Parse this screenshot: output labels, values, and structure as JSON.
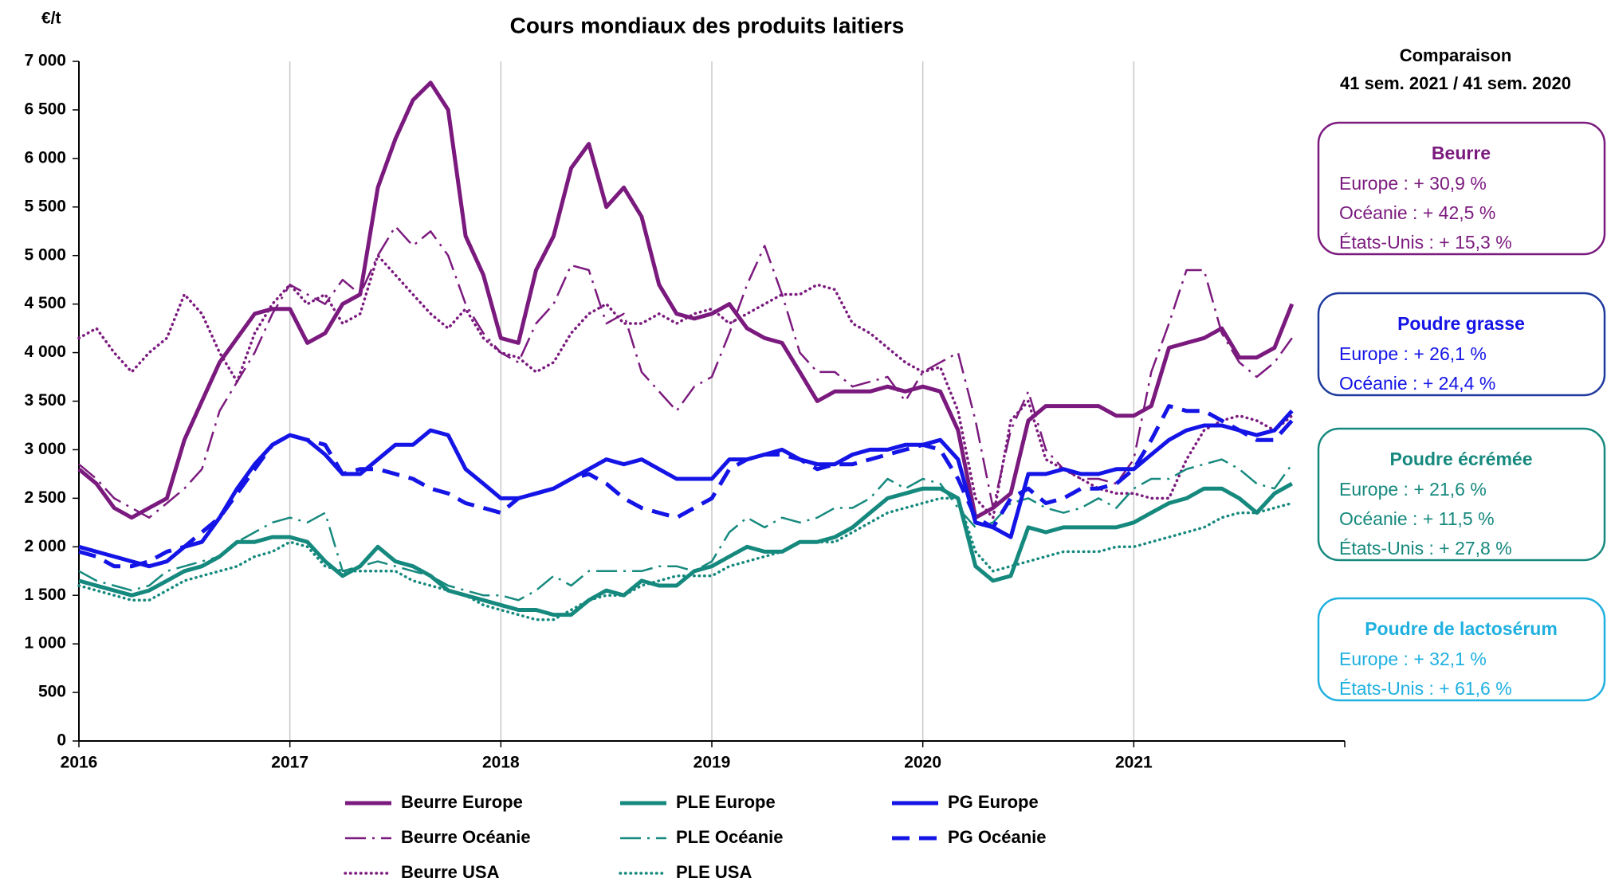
{
  "chart_data": {
    "type": "line",
    "title": "Cours mondiaux des produits laitiers",
    "y_label": "€/t",
    "x": [
      2016,
      2016.083,
      2016.167,
      2016.25,
      2016.333,
      2016.417,
      2016.5,
      2016.583,
      2016.667,
      2016.75,
      2016.833,
      2016.917,
      2017,
      2017.083,
      2017.167,
      2017.25,
      2017.333,
      2017.417,
      2017.5,
      2017.583,
      2017.667,
      2017.75,
      2017.833,
      2017.917,
      2018,
      2018.083,
      2018.167,
      2018.25,
      2018.333,
      2018.417,
      2018.5,
      2018.583,
      2018.667,
      2018.75,
      2018.833,
      2018.917,
      2019,
      2019.083,
      2019.167,
      2019.25,
      2019.333,
      2019.417,
      2019.5,
      2019.583,
      2019.667,
      2019.75,
      2019.833,
      2019.917,
      2020,
      2020.083,
      2020.167,
      2020.25,
      2020.333,
      2020.417,
      2020.5,
      2020.583,
      2020.667,
      2020.75,
      2020.833,
      2020.917,
      2021,
      2021.083,
      2021.167,
      2021.25,
      2021.333,
      2021.417,
      2021.5,
      2021.583,
      2021.667,
      2021.75
    ],
    "xlim": [
      2016,
      2022
    ],
    "xticks": [
      2016,
      2017,
      2018,
      2019,
      2020,
      2021
    ],
    "ylim": [
      0,
      7000
    ],
    "yticks": [
      0,
      500,
      {
        "value": 1000,
        "label": "1 000"
      },
      {
        "value": 1500,
        "label": "1 500"
      },
      {
        "value": 2000,
        "label": "2 000"
      },
      {
        "value": 2500,
        "label": "2 500"
      },
      {
        "value": 3000,
        "label": "3 000"
      },
      {
        "value": 3500,
        "label": "3 500"
      },
      {
        "value": 4000,
        "label": "4 000"
      },
      {
        "value": 4500,
        "label": "4 500"
      },
      {
        "value": 5000,
        "label": "5 000"
      },
      {
        "value": 5500,
        "label": "5 500"
      },
      {
        "value": 6000,
        "label": "6 000"
      },
      {
        "value": 6500,
        "label": "6 500"
      },
      {
        "value": 7000,
        "label": "7 000"
      }
    ],
    "grid": "x",
    "series": [
      {
        "name": "Beurre Europe",
        "color": "#7b1a7e",
        "style": "solid",
        "values": [
          2800,
          2650,
          2400,
          2300,
          2400,
          2500,
          3100,
          3500,
          3900,
          4150,
          4400,
          4450,
          4450,
          4100,
          4200,
          4500,
          4600,
          5700,
          6200,
          6600,
          6780,
          6500,
          5200,
          4800,
          4150,
          4100,
          4850,
          5200,
          5900,
          6150,
          5500,
          5700,
          5400,
          4700,
          4400,
          4350,
          4400,
          4500,
          4250,
          4150,
          4100,
          3800,
          3500,
          3600,
          3600,
          3600,
          3650,
          3600,
          3650,
          3600,
          3200,
          2300,
          2400,
          2550,
          3300,
          3450,
          3450,
          3450,
          3450,
          3350,
          3350,
          3450,
          4050,
          4100,
          4150,
          4250,
          3950,
          3950,
          4050,
          4500
        ]
      },
      {
        "name": "Beurre Océanie",
        "color": "#7b1a7e",
        "style": "dashdot",
        "values": [
          2850,
          2700,
          2500,
          2400,
          2300,
          2450,
          2600,
          2800,
          3400,
          3700,
          4000,
          4400,
          4700,
          4600,
          4500,
          4750,
          4600,
          5000,
          5300,
          5100,
          5250,
          5000,
          4500,
          4200,
          4000,
          3900,
          4300,
          4500,
          4900,
          4850,
          4300,
          4400,
          3800,
          3600,
          3400,
          3650,
          3750,
          4200,
          4700,
          5100,
          4600,
          4000,
          3800,
          3800,
          3650,
          3700,
          3750,
          3500,
          3800,
          3900,
          4000,
          3300,
          2400,
          3200,
          3600,
          3000,
          2800,
          2700,
          2700,
          2650,
          2900,
          3800,
          4300,
          4850,
          4850,
          4200,
          3900,
          3750,
          3900,
          4150
        ]
      },
      {
        "name": "Beurre USA",
        "color": "#7b1a7e",
        "style": "dotted",
        "values": [
          4150,
          4250,
          4000,
          3800,
          4000,
          4150,
          4600,
          4400,
          4000,
          3700,
          4200,
          4500,
          4700,
          4500,
          4600,
          4300,
          4400,
          5000,
          4800,
          4600,
          4400,
          4250,
          4450,
          4150,
          4000,
          3950,
          3800,
          3900,
          4200,
          4400,
          4500,
          4300,
          4300,
          4400,
          4300,
          4400,
          4450,
          4300,
          4400,
          4500,
          4600,
          4600,
          4700,
          4650,
          4300,
          4200,
          4050,
          3900,
          3800,
          3850,
          3400,
          2500,
          2300,
          3300,
          3500,
          2900,
          2800,
          2700,
          2600,
          2550,
          2550,
          2500,
          2500,
          2900,
          3200,
          3300,
          3350,
          3300,
          3200,
          3350
        ]
      },
      {
        "name": "PLE Europe",
        "color": "#16897e",
        "style": "solid",
        "values": [
          1650,
          1600,
          1550,
          1500,
          1550,
          1650,
          1750,
          1800,
          1900,
          2050,
          2050,
          2100,
          2100,
          2050,
          1850,
          1700,
          1800,
          2000,
          1850,
          1800,
          1700,
          1550,
          1500,
          1450,
          1400,
          1350,
          1350,
          1300,
          1300,
          1450,
          1550,
          1500,
          1650,
          1600,
          1600,
          1750,
          1800,
          1900,
          2000,
          1950,
          1950,
          2050,
          2050,
          2100,
          2200,
          2350,
          2500,
          2550,
          2600,
          2600,
          2500,
          1800,
          1650,
          1700,
          2200,
          2150,
          2200,
          2200,
          2200,
          2200,
          2250,
          2350,
          2450,
          2500,
          2600,
          2600,
          2500,
          2350,
          2550,
          2650
        ]
      },
      {
        "name": "PLE Océanie",
        "color": "#16897e",
        "style": "dashdot",
        "values": [
          1750,
          1650,
          1600,
          1550,
          1600,
          1750,
          1800,
          1850,
          1900,
          2050,
          2150,
          2250,
          2300,
          2250,
          2350,
          1750,
          1800,
          1850,
          1800,
          1750,
          1700,
          1600,
          1550,
          1500,
          1500,
          1450,
          1550,
          1700,
          1600,
          1750,
          1750,
          1750,
          1750,
          1800,
          1800,
          1750,
          1850,
          2150,
          2300,
          2200,
          2300,
          2250,
          2300,
          2400,
          2400,
          2500,
          2700,
          2600,
          2700,
          2650,
          2400,
          2200,
          2250,
          2450,
          2500,
          2400,
          2350,
          2400,
          2500,
          2400,
          2600,
          2700,
          2700,
          2800,
          2850,
          2900,
          2800,
          2650,
          2600,
          2850
        ]
      },
      {
        "name": "PLE USA",
        "color": "#16897e",
        "style": "dotted",
        "values": [
          1600,
          1550,
          1500,
          1450,
          1450,
          1550,
          1650,
          1700,
          1750,
          1800,
          1900,
          1950,
          2050,
          2000,
          1800,
          1750,
          1750,
          1750,
          1750,
          1650,
          1600,
          1550,
          1500,
          1400,
          1350,
          1300,
          1250,
          1250,
          1350,
          1450,
          1500,
          1500,
          1600,
          1650,
          1700,
          1700,
          1700,
          1800,
          1850,
          1900,
          1950,
          2050,
          2050,
          2050,
          2150,
          2250,
          2350,
          2400,
          2450,
          2500,
          2500,
          1950,
          1750,
          1800,
          1850,
          1900,
          1950,
          1950,
          1950,
          2000,
          2000,
          2050,
          2100,
          2150,
          2200,
          2300,
          2350,
          2350,
          2400,
          2450
        ]
      },
      {
        "name": "PG Europe",
        "color": "#1414e6",
        "style": "solid",
        "values": [
          2000,
          1950,
          1900,
          1850,
          1800,
          1850,
          2000,
          2050,
          2300,
          2600,
          2850,
          3050,
          3150,
          3100,
          2950,
          2750,
          2750,
          2900,
          3050,
          3050,
          3200,
          3150,
          2800,
          2650,
          2500,
          2500,
          2550,
          2600,
          2700,
          2800,
          2900,
          2850,
          2900,
          2800,
          2700,
          2700,
          2700,
          2900,
          2900,
          2950,
          3000,
          2900,
          2850,
          2850,
          2950,
          3000,
          3000,
          3050,
          3050,
          3100,
          2900,
          2250,
          2200,
          2100,
          2750,
          2750,
          2800,
          2750,
          2750,
          2800,
          2800,
          2950,
          3100,
          3200,
          3250,
          3250,
          3200,
          3150,
          3200,
          3400
        ]
      },
      {
        "name": "PG Océanie",
        "color": "#1414e6",
        "style": "dashed",
        "values": [
          1950,
          1900,
          1800,
          1800,
          1850,
          1950,
          2000,
          2150,
          2300,
          2550,
          2800,
          3050,
          3150,
          3100,
          3050,
          2750,
          2800,
          2800,
          2750,
          2700,
          2600,
          2550,
          2450,
          2400,
          2350,
          2500,
          2550,
          2600,
          2700,
          2750,
          2650,
          2500,
          2400,
          2350,
          2300,
          2400,
          2500,
          2800,
          2900,
          2950,
          2950,
          2900,
          2800,
          2850,
          2850,
          2900,
          2950,
          3000,
          3050,
          3000,
          2700,
          2300,
          2200,
          2500,
          2600,
          2450,
          2500,
          2600,
          2600,
          2650,
          2800,
          3100,
          3450,
          3400,
          3400,
          3300,
          3200,
          3100,
          3100,
          3300
        ]
      }
    ],
    "comparison": {
      "title": [
        "Comparaison",
        "41 sem. 2021 / 41 sem.  2020"
      ],
      "boxes": [
        {
          "title": "Beurre",
          "color": "#7b1a7e",
          "lines": [
            "Europe : + 30,9 %",
            "Océanie : + 42,5 %",
            "États-Unis : + 15,3 %"
          ]
        },
        {
          "title": "Poudre grasse",
          "color": "#1414e6",
          "border": "#1f3a9e",
          "lines": [
            "Europe : + 26,1 %",
            "Océanie : + 24,4 %"
          ]
        },
        {
          "title": "Poudre écrémée",
          "color": "#16897e",
          "lines": [
            "Europe : + 21,6 %",
            "Océanie : + 11,5 %",
            "États-Unis : + 27,8 %"
          ]
        },
        {
          "title": "Poudre de lactosérum",
          "color": "#1fb0e0",
          "lines": [
            "Europe : + 32,1 %",
            "États-Unis : + 61,6 %"
          ]
        }
      ]
    }
  }
}
